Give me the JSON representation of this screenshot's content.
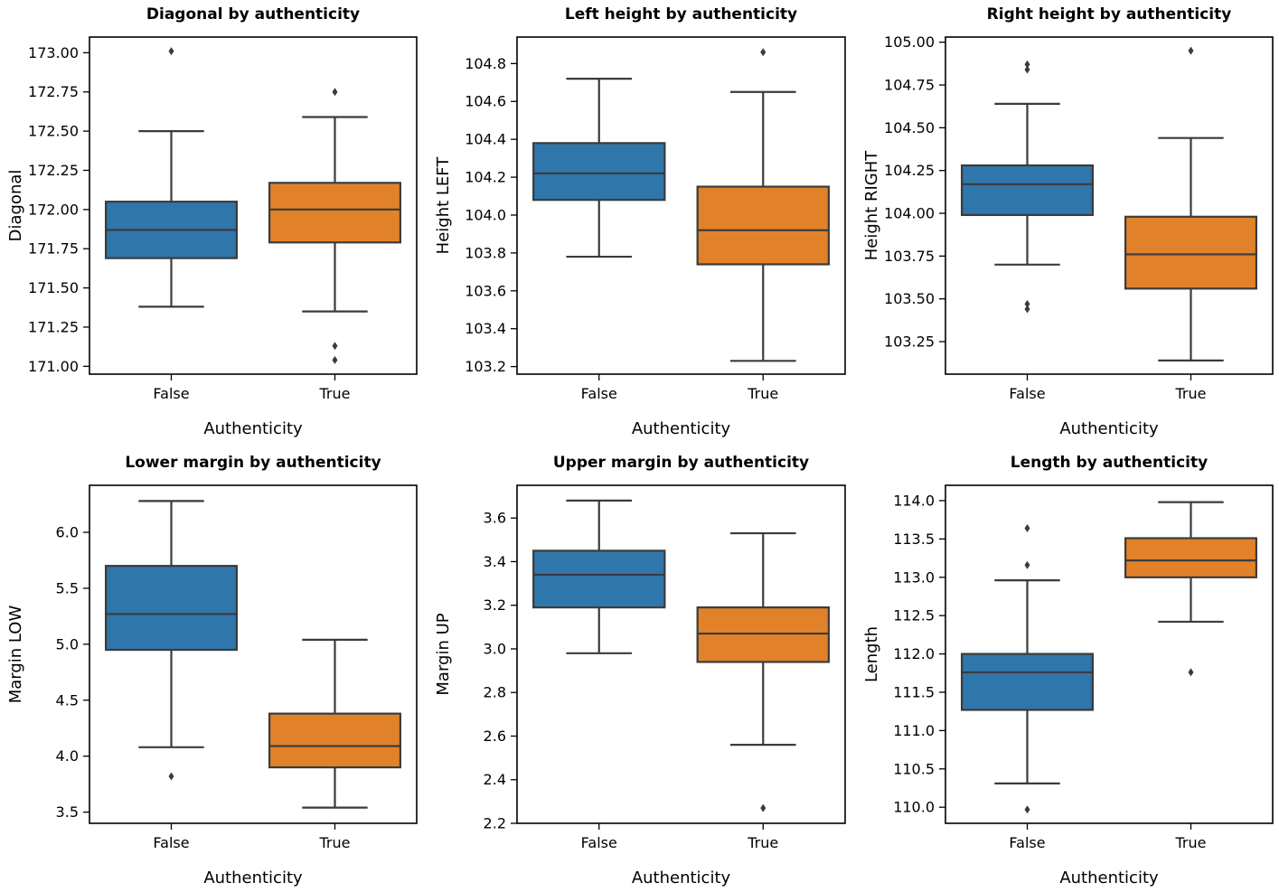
{
  "colors": {
    "false_box": "#2f76ab",
    "true_box": "#e1822a",
    "line": "#3b3b3b",
    "axes": "#000000"
  },
  "chart_data": [
    {
      "type": "boxplot",
      "title": "Diagonal by authenticity",
      "xlabel": "Authenticity",
      "ylabel": "Diagonal",
      "categories": [
        "False",
        "True"
      ],
      "ylim": [
        170.95,
        173.1
      ],
      "yticks": [
        171.0,
        171.25,
        171.5,
        171.75,
        172.0,
        172.25,
        172.5,
        172.75,
        173.0
      ],
      "ytick_labels": [
        "171.00",
        "171.25",
        "171.50",
        "171.75",
        "172.00",
        "172.25",
        "172.50",
        "172.75",
        "173.00"
      ],
      "boxes": [
        {
          "category": "False",
          "whisker_low": 171.38,
          "q1": 171.69,
          "median": 171.87,
          "q3": 172.05,
          "whisker_high": 172.5,
          "outliers": [
            173.01
          ]
        },
        {
          "category": "True",
          "whisker_low": 171.35,
          "q1": 171.79,
          "median": 172.0,
          "q3": 172.17,
          "whisker_high": 172.59,
          "outliers": [
            172.75,
            171.13,
            171.04
          ]
        }
      ]
    },
    {
      "type": "boxplot",
      "title": "Left height by authenticity",
      "xlabel": "Authenticity",
      "ylabel": "Height LEFT",
      "categories": [
        "False",
        "True"
      ],
      "ylim": [
        103.16,
        104.94
      ],
      "yticks": [
        103.2,
        103.4,
        103.6,
        103.8,
        104.0,
        104.2,
        104.4,
        104.6,
        104.8
      ],
      "ytick_labels": [
        "103.2",
        "103.4",
        "103.6",
        "103.8",
        "104.0",
        "104.2",
        "104.4",
        "104.6",
        "104.8"
      ],
      "boxes": [
        {
          "category": "False",
          "whisker_low": 103.78,
          "q1": 104.08,
          "median": 104.22,
          "q3": 104.38,
          "whisker_high": 104.72,
          "outliers": []
        },
        {
          "category": "True",
          "whisker_low": 103.23,
          "q1": 103.74,
          "median": 103.92,
          "q3": 104.15,
          "whisker_high": 104.65,
          "outliers": [
            104.86
          ]
        }
      ]
    },
    {
      "type": "boxplot",
      "title": "Right height by authenticity",
      "xlabel": "Authenticity",
      "ylabel": "Height RIGHT",
      "categories": [
        "False",
        "True"
      ],
      "ylim": [
        103.06,
        105.03
      ],
      "yticks": [
        103.25,
        103.5,
        103.75,
        104.0,
        104.25,
        104.5,
        104.75,
        105.0
      ],
      "ytick_labels": [
        "103.25",
        "103.50",
        "103.75",
        "104.00",
        "104.25",
        "104.50",
        "104.75",
        "105.00"
      ],
      "boxes": [
        {
          "category": "False",
          "whisker_low": 103.7,
          "q1": 103.99,
          "median": 104.17,
          "q3": 104.28,
          "whisker_high": 104.64,
          "outliers": [
            104.87,
            104.84,
            103.47,
            103.44
          ]
        },
        {
          "category": "True",
          "whisker_low": 103.14,
          "q1": 103.56,
          "median": 103.76,
          "q3": 103.98,
          "whisker_high": 104.44,
          "outliers": [
            104.95
          ]
        }
      ]
    },
    {
      "type": "boxplot",
      "title": "Lower margin by authenticity",
      "xlabel": "Authenticity",
      "ylabel": "Margin LOW",
      "categories": [
        "False",
        "True"
      ],
      "ylim": [
        3.4,
        6.42
      ],
      "yticks": [
        3.5,
        4.0,
        4.5,
        5.0,
        5.5,
        6.0
      ],
      "ytick_labels": [
        "3.5",
        "4.0",
        "4.5",
        "5.0",
        "5.5",
        "6.0"
      ],
      "boxes": [
        {
          "category": "False",
          "whisker_low": 4.08,
          "q1": 4.95,
          "median": 5.27,
          "q3": 5.7,
          "whisker_high": 6.28,
          "outliers": [
            3.82
          ]
        },
        {
          "category": "True",
          "whisker_low": 3.54,
          "q1": 3.9,
          "median": 4.09,
          "q3": 4.38,
          "whisker_high": 5.04,
          "outliers": []
        }
      ]
    },
    {
      "type": "boxplot",
      "title": "Upper margin by authenticity",
      "xlabel": "Authenticity",
      "ylabel": "Margin UP",
      "categories": [
        "False",
        "True"
      ],
      "ylim": [
        2.2,
        3.75
      ],
      "yticks": [
        2.2,
        2.4,
        2.6,
        2.8,
        3.0,
        3.2,
        3.4,
        3.6
      ],
      "ytick_labels": [
        "2.2",
        "2.4",
        "2.6",
        "2.8",
        "3.0",
        "3.2",
        "3.4",
        "3.6"
      ],
      "boxes": [
        {
          "category": "False",
          "whisker_low": 2.98,
          "q1": 3.19,
          "median": 3.34,
          "q3": 3.45,
          "whisker_high": 3.68,
          "outliers": []
        },
        {
          "category": "True",
          "whisker_low": 2.56,
          "q1": 2.94,
          "median": 3.07,
          "q3": 3.19,
          "whisker_high": 3.53,
          "outliers": [
            2.27
          ]
        }
      ]
    },
    {
      "type": "boxplot",
      "title": "Length by authenticity",
      "xlabel": "Authenticity",
      "ylabel": "Length",
      "categories": [
        "False",
        "True"
      ],
      "ylim": [
        109.79,
        114.2
      ],
      "yticks": [
        110.0,
        110.5,
        111.0,
        111.5,
        112.0,
        112.5,
        113.0,
        113.5,
        114.0
      ],
      "ytick_labels": [
        "110.0",
        "110.5",
        "111.0",
        "111.5",
        "112.0",
        "112.5",
        "113.0",
        "113.5",
        "114.0"
      ],
      "boxes": [
        {
          "category": "False",
          "whisker_low": 110.31,
          "q1": 111.27,
          "median": 111.76,
          "q3": 112.0,
          "whisker_high": 112.96,
          "outliers": [
            113.64,
            113.16,
            109.97
          ]
        },
        {
          "category": "True",
          "whisker_low": 112.42,
          "q1": 113.0,
          "median": 113.22,
          "q3": 113.51,
          "whisker_high": 113.98,
          "outliers": [
            111.76
          ]
        }
      ]
    }
  ]
}
